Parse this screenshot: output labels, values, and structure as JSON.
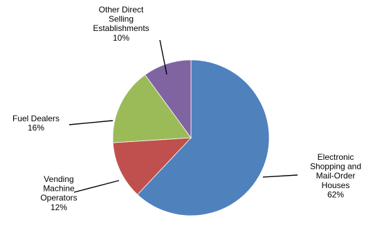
{
  "chart_data": {
    "type": "pie",
    "title": "",
    "start_angle_deg": 0,
    "direction": "clockwise",
    "legend": "none",
    "slices": [
      {
        "label": "Electronic Shopping and Mail-Order Houses",
        "value": 62,
        "percent_label": "62%",
        "color": "#4F81BD",
        "label_lines": [
          "Electronic",
          "Shopping and",
          "Mail-Order",
          "Houses",
          "62%"
        ]
      },
      {
        "label": "Vending Machine Operators",
        "value": 12,
        "percent_label": "12%",
        "color": "#C0504D",
        "label_lines": [
          "Vending",
          "Machine",
          "Operators",
          "12%"
        ]
      },
      {
        "label": "Fuel Dealers",
        "value": 16,
        "percent_label": "16%",
        "color": "#9BBB59",
        "label_lines": [
          "Fuel Dealers",
          "16%"
        ]
      },
      {
        "label": "Other Direct Selling Establishments",
        "value": 10,
        "percent_label": "10%",
        "color": "#8064A2",
        "label_lines": [
          "Other Direct",
          "Selling",
          "Establishments",
          "10%"
        ]
      }
    ]
  }
}
